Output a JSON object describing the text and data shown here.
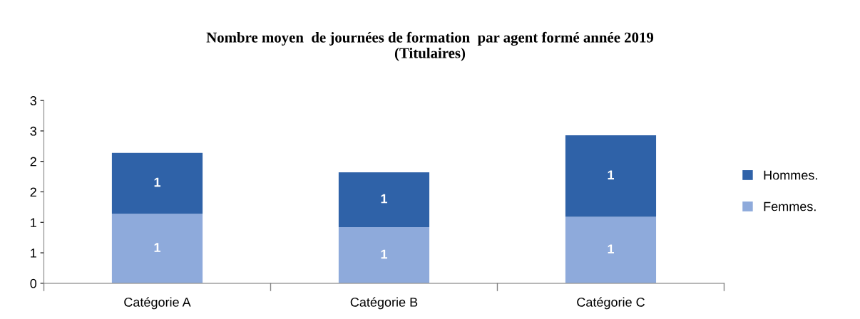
{
  "chart_data": {
    "type": "bar",
    "title": "Nombre moyen  de journées de formation  par agent formé année 2019\n(Titulaires)",
    "categories": [
      "Catégorie A",
      "Catégorie B",
      "Catégorie C"
    ],
    "stacked": true,
    "series": [
      {
        "name": "Femmes.",
        "color": "#8eaadb",
        "values": [
          1.14,
          0.92,
          1.09
        ],
        "value_labels": [
          "1",
          "1",
          "1"
        ]
      },
      {
        "name": "Hommes.",
        "color": "#2f62a8",
        "values": [
          1.0,
          0.9,
          1.34
        ],
        "value_labels": [
          "1",
          "1",
          "1"
        ]
      }
    ],
    "ylim": [
      0,
      3
    ],
    "yticks": [
      0,
      {
        "value": 0.5,
        "label": "1"
      },
      {
        "value": 1,
        "label": "1"
      },
      {
        "value": 1.5,
        "label": "2"
      },
      {
        "value": 2,
        "label": "2"
      },
      {
        "value": 2.5,
        "label": "3"
      },
      {
        "value": 3,
        "label": "3"
      }
    ],
    "grid": false,
    "legend": "right"
  }
}
